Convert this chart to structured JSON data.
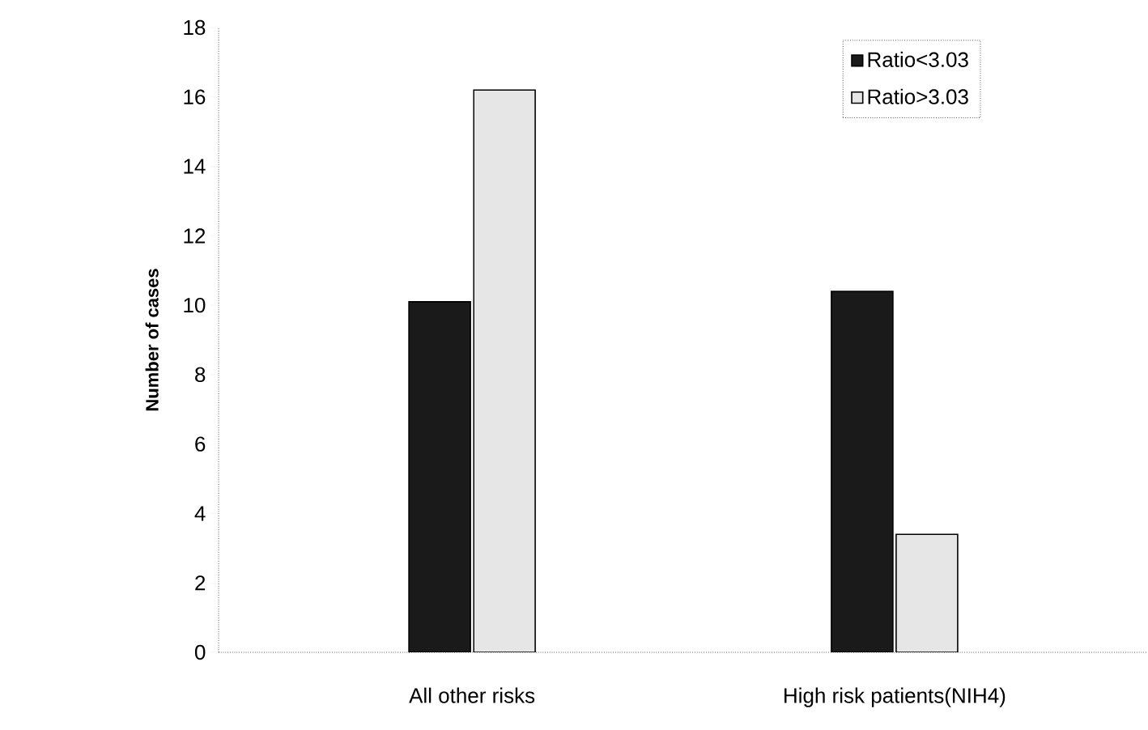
{
  "chart_data": {
    "type": "bar",
    "ylabel": "Number of cases",
    "categories": [
      "All other risks",
      "High risk patients(NIH4)"
    ],
    "series": [
      {
        "name": "Ratio<3.03",
        "color": "#1a1a1a",
        "values": [
          10.1,
          10.4
        ]
      },
      {
        "name": "Ratio>3.03",
        "color": "#e6e6e6",
        "values": [
          16.2,
          3.4
        ]
      }
    ],
    "ylim": [
      0,
      18
    ],
    "yticks": [
      0,
      2,
      4,
      6,
      8,
      10,
      12,
      14,
      16,
      18
    ],
    "legend": "top right",
    "grid": false
  }
}
